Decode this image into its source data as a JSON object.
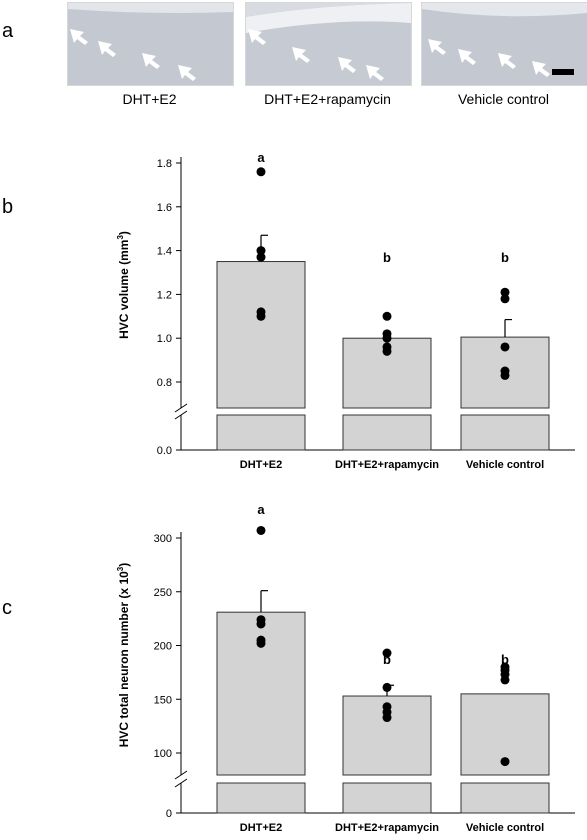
{
  "panel_labels": [
    "a",
    "b",
    "c"
  ],
  "micrographs": [
    {
      "caption": "DHT+E2"
    },
    {
      "caption": "DHT+E2+rapamycin"
    },
    {
      "caption": "Vehicle control"
    }
  ],
  "icons": {
    "arrow": "white-arrow-icon",
    "scale_bar": "scale-bar"
  },
  "colors": {
    "bar_fill": "#d3d3d3",
    "bar_stroke": "#333333",
    "point": "#000000"
  },
  "chart_data": [
    {
      "type": "bar",
      "panel": "b",
      "categories": [
        "DHT+E2",
        "DHT+E2+rapamycin",
        "Vehicle control"
      ],
      "ylabel": "HVC volume (mm3)",
      "ylabel_main": "HVC volume (mm",
      "ylabel_sup": "3",
      "ylabel_close": ")",
      "ylim": [
        0,
        1.85
      ],
      "axis_break": [
        0.0,
        0.72
      ],
      "ticks": [
        0.0,
        0.8,
        1.0,
        1.2,
        1.4,
        1.6,
        1.8
      ],
      "tick_labels": [
        "0.0",
        "0.8",
        "1.0",
        "1.2",
        "1.4",
        "1.6",
        "1.8"
      ],
      "means": [
        1.35,
        1.0,
        1.005
      ],
      "sem": [
        0.12,
        0.0,
        0.08
      ],
      "significance": [
        "a",
        "b",
        "b"
      ],
      "points": [
        [
          1.76,
          1.4,
          1.37,
          1.12,
          1.1
        ],
        [
          1.1,
          1.02,
          1.0,
          0.96,
          0.94
        ],
        [
          1.21,
          1.18,
          0.96,
          0.85,
          0.83
        ]
      ]
    },
    {
      "type": "bar",
      "panel": "c",
      "categories": [
        "DHT+E2",
        "DHT+E2+rapamycin",
        "Vehicle control"
      ],
      "ylabel": "HVC total neuron number (x 103)",
      "ylabel_main": "HVC total neuron number (x 10",
      "ylabel_sup": "3",
      "ylabel_close": ")",
      "ylim": [
        0,
        320
      ],
      "axis_break": [
        0,
        78
      ],
      "ticks": [
        0,
        100,
        150,
        200,
        250,
        300
      ],
      "tick_labels": [
        "0",
        "100",
        "150",
        "200",
        "250",
        "300"
      ],
      "means": [
        231,
        153,
        155
      ],
      "sem": [
        20,
        10,
        0
      ],
      "significance": [
        "a",
        "b",
        "b"
      ],
      "points": [
        [
          307,
          224,
          220,
          205,
          202
        ],
        [
          193,
          161,
          143,
          138,
          133
        ],
        [
          180,
          177,
          173,
          168,
          92
        ]
      ]
    }
  ]
}
